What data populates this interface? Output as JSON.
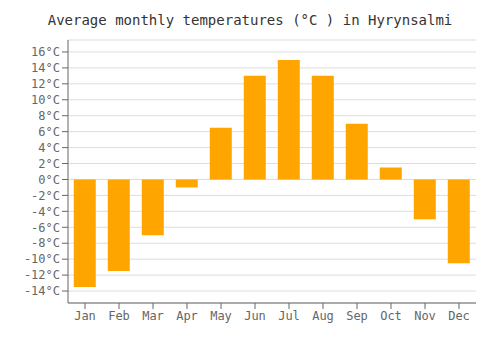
{
  "chart_data": {
    "type": "bar",
    "title": "Average monthly temperatures (°C ) in Hyrynsalmi",
    "categories": [
      "Jan",
      "Feb",
      "Mar",
      "Apr",
      "May",
      "Jun",
      "Jul",
      "Aug",
      "Sep",
      "Oct",
      "Nov",
      "Dec"
    ],
    "values": [
      -13.5,
      -11.5,
      -7.0,
      -1.0,
      6.5,
      13.0,
      15.0,
      13.0,
      7.0,
      1.5,
      -5.0,
      -10.5
    ],
    "color": "#FFA500",
    "ylim": [
      -15.5,
      17.5
    ],
    "yticks": [
      {
        "value": -14,
        "label": "-14°C"
      },
      {
        "value": -12,
        "label": "-12°C"
      },
      {
        "value": -10,
        "label": "-10°C"
      },
      {
        "value": -8,
        "label": "-8°C"
      },
      {
        "value": -6,
        "label": "-6°C"
      },
      {
        "value": -4,
        "label": "-4°C"
      },
      {
        "value": -2,
        "label": "-2°C"
      },
      {
        "value": 0,
        "label": "0°C"
      },
      {
        "value": 2,
        "label": "2°C"
      },
      {
        "value": 4,
        "label": "4°C"
      },
      {
        "value": 6,
        "label": "6°C"
      },
      {
        "value": 8,
        "label": "8°C"
      },
      {
        "value": 10,
        "label": "10°C"
      },
      {
        "value": 12,
        "label": "12°C"
      },
      {
        "value": 14,
        "label": "14°C"
      },
      {
        "value": 16,
        "label": "16°C"
      }
    ],
    "grid": true
  }
}
